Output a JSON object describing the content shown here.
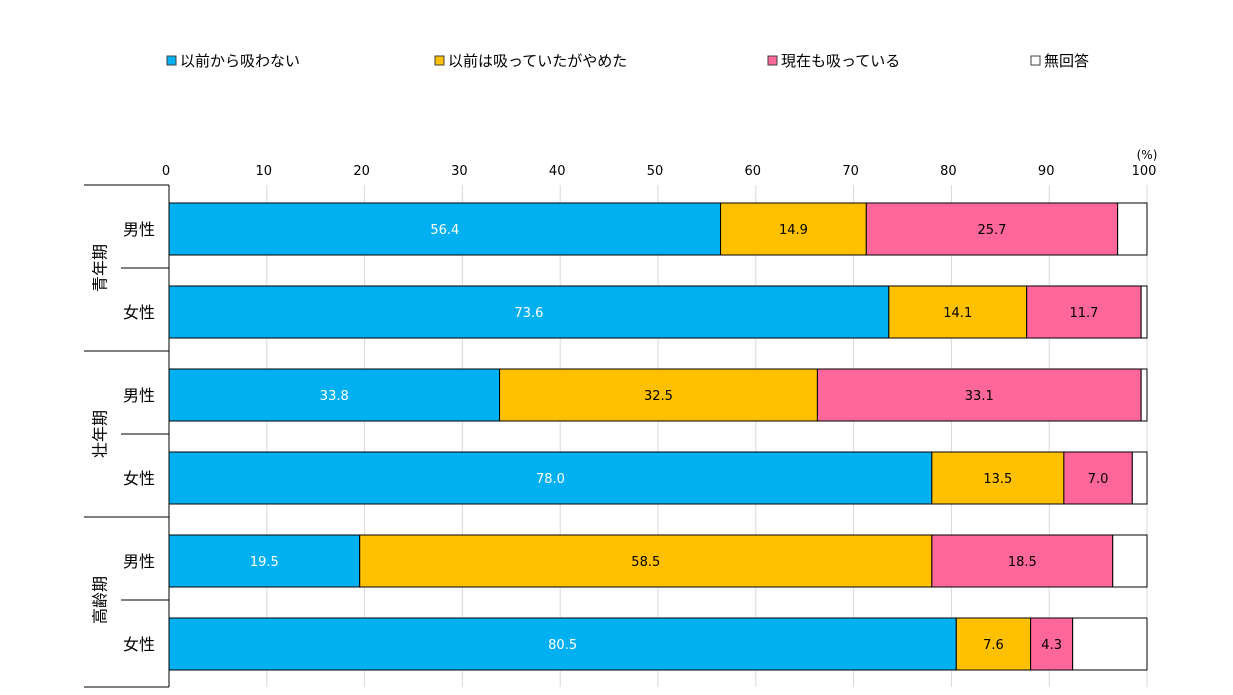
{
  "chart_data": {
    "type": "bar",
    "orientation": "horizontal",
    "stacked": true,
    "unit_label": "(%)",
    "xlim": [
      0,
      100
    ],
    "x_ticks": [
      "0",
      "10",
      "20",
      "30",
      "40",
      "50",
      "60",
      "70",
      "80",
      "90",
      "100"
    ],
    "grid": true,
    "legend_position": "top",
    "groups": [
      {
        "label": "青年期",
        "rows": [
          "男性",
          "女性"
        ]
      },
      {
        "label": "壮年期",
        "rows": [
          "男性",
          "女性"
        ]
      },
      {
        "label": "高齢期",
        "rows": [
          "男性",
          "女性"
        ]
      }
    ],
    "series": [
      {
        "name": "以前から吸わない",
        "color": "#00B0F0",
        "label_color": "#ffffff",
        "values": [
          56.4,
          73.6,
          33.8,
          78.0,
          19.5,
          80.5
        ],
        "labels": [
          "56.4",
          "73.6",
          "33.8",
          "78.0",
          "19.5",
          "80.5"
        ]
      },
      {
        "name": "以前は吸っていたがやめた",
        "color": "#FFC000",
        "label_color": "#000000",
        "values": [
          14.9,
          14.1,
          32.5,
          13.5,
          58.5,
          7.6
        ],
        "labels": [
          "14.9",
          "14.1",
          "32.5",
          "13.5",
          "58.5",
          "7.6"
        ]
      },
      {
        "name": "現在も吸っている",
        "color": "#FF6699",
        "label_color": "#000000",
        "values": [
          25.7,
          11.7,
          33.1,
          7.0,
          18.5,
          4.3
        ],
        "labels": [
          "25.7",
          "11.7",
          "33.1",
          "7.0",
          "18.5",
          "4.3"
        ]
      },
      {
        "name": "無回答",
        "color": "#FFFFFF",
        "label_color": "#000000",
        "values": [
          3.0,
          0.6,
          0.6,
          1.5,
          3.5,
          7.6
        ],
        "labels": [
          "",
          "",
          "",
          "",
          "",
          ""
        ]
      }
    ]
  }
}
